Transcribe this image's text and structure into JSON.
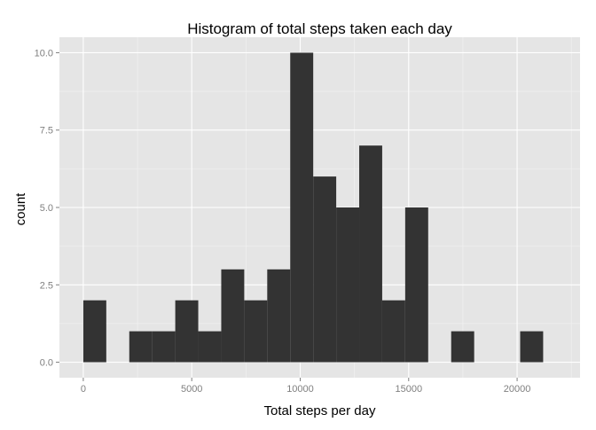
{
  "chart_data": {
    "type": "bar",
    "title": "Histogram of total steps taken each day",
    "xlabel": "Total steps per day",
    "ylabel": "count",
    "xlim": [
      -1100,
      22900
    ],
    "ylim": [
      -0.5,
      10.5
    ],
    "xticks": [
      {
        "value": 0,
        "label": "0"
      },
      {
        "value": 5000,
        "label": "5000"
      },
      {
        "value": 10000,
        "label": "10000"
      },
      {
        "value": 15000,
        "label": "15000"
      },
      {
        "value": 20000,
        "label": "20000"
      }
    ],
    "yticks": [
      {
        "value": 0,
        "label": "0.0"
      },
      {
        "value": 2.5,
        "label": "2.5"
      },
      {
        "value": 5,
        "label": "5.0"
      },
      {
        "value": 7.5,
        "label": "7.5"
      },
      {
        "value": 10,
        "label": "10.0"
      }
    ],
    "bin_edges": [
      0,
      1060,
      2120,
      3180,
      4240,
      5300,
      6360,
      7420,
      8480,
      9540,
      10600,
      11660,
      12720,
      13780,
      14840,
      15900,
      16960,
      18020,
      19080,
      20140,
      21200
    ],
    "counts": [
      2,
      0,
      1,
      1,
      2,
      1,
      3,
      2,
      3,
      10,
      6,
      5,
      7,
      2,
      5,
      0,
      1,
      0,
      0,
      1
    ],
    "grid": true,
    "colors": {
      "panel": "#e5e5e5",
      "grid_major": "#ffffff",
      "grid_minor": "#f2f2f2",
      "bar": "#333333",
      "tick_text": "#7f7f7f"
    }
  }
}
